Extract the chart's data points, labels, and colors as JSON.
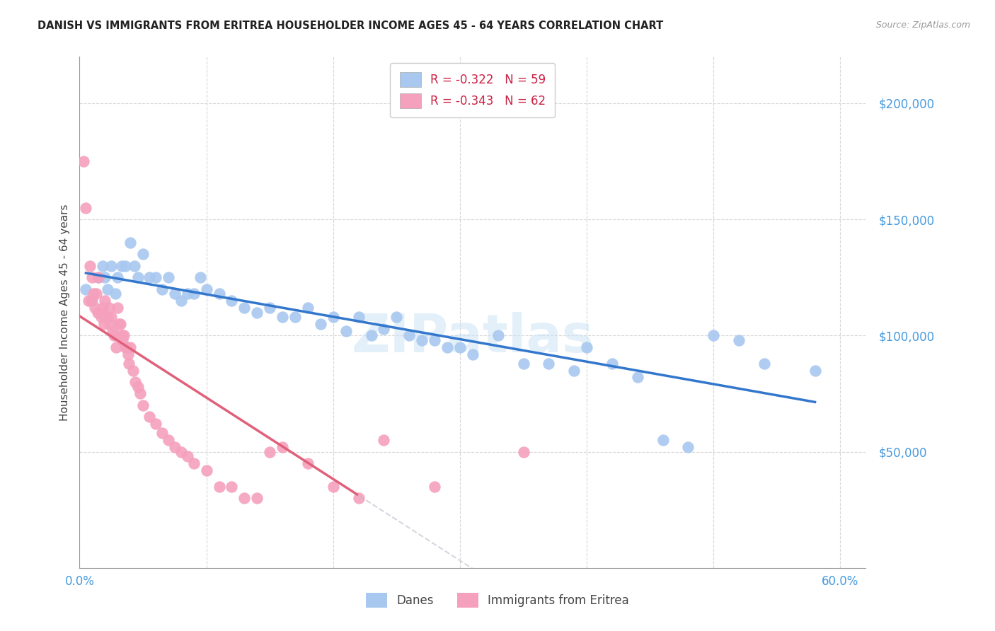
{
  "title": "DANISH VS IMMIGRANTS FROM ERITREA HOUSEHOLDER INCOME AGES 45 - 64 YEARS CORRELATION CHART",
  "source": "Source: ZipAtlas.com",
  "ylabel": "Householder Income Ages 45 - 64 years",
  "ytick_values": [
    50000,
    100000,
    150000,
    200000
  ],
  "ylim": [
    0,
    220000
  ],
  "xlim": [
    0.0,
    0.62
  ],
  "danes_R": "-0.322",
  "danes_N": "59",
  "eritrea_R": "-0.343",
  "eritrea_N": "62",
  "dane_color": "#a8c8f0",
  "eritrea_color": "#f5a0bc",
  "dane_line_color": "#3377cc",
  "eritrea_line_color": "#e0607a",
  "danes_x": [
    0.005,
    0.01,
    0.015,
    0.018,
    0.02,
    0.022,
    0.025,
    0.028,
    0.03,
    0.033,
    0.036,
    0.04,
    0.043,
    0.046,
    0.05,
    0.055,
    0.06,
    0.065,
    0.07,
    0.075,
    0.08,
    0.085,
    0.09,
    0.095,
    0.1,
    0.11,
    0.12,
    0.13,
    0.14,
    0.15,
    0.16,
    0.17,
    0.18,
    0.19,
    0.2,
    0.21,
    0.22,
    0.23,
    0.24,
    0.25,
    0.26,
    0.27,
    0.28,
    0.29,
    0.3,
    0.31,
    0.33,
    0.35,
    0.37,
    0.39,
    0.4,
    0.42,
    0.44,
    0.46,
    0.48,
    0.5,
    0.52,
    0.54,
    0.58
  ],
  "danes_y": [
    120000,
    115000,
    125000,
    130000,
    125000,
    120000,
    130000,
    118000,
    125000,
    130000,
    130000,
    140000,
    130000,
    125000,
    135000,
    125000,
    125000,
    120000,
    125000,
    118000,
    115000,
    118000,
    118000,
    125000,
    120000,
    118000,
    115000,
    112000,
    110000,
    112000,
    108000,
    108000,
    112000,
    105000,
    108000,
    102000,
    108000,
    100000,
    103000,
    108000,
    100000,
    98000,
    98000,
    95000,
    95000,
    92000,
    100000,
    88000,
    88000,
    85000,
    95000,
    88000,
    82000,
    55000,
    52000,
    100000,
    98000,
    88000,
    85000
  ],
  "eritrea_x": [
    0.003,
    0.005,
    0.007,
    0.008,
    0.009,
    0.01,
    0.011,
    0.012,
    0.013,
    0.014,
    0.015,
    0.016,
    0.017,
    0.018,
    0.019,
    0.02,
    0.021,
    0.022,
    0.023,
    0.024,
    0.025,
    0.026,
    0.027,
    0.028,
    0.029,
    0.03,
    0.031,
    0.032,
    0.033,
    0.034,
    0.035,
    0.036,
    0.037,
    0.038,
    0.039,
    0.04,
    0.042,
    0.044,
    0.046,
    0.048,
    0.05,
    0.055,
    0.06,
    0.065,
    0.07,
    0.075,
    0.08,
    0.085,
    0.09,
    0.1,
    0.11,
    0.12,
    0.13,
    0.14,
    0.15,
    0.16,
    0.18,
    0.2,
    0.22,
    0.24,
    0.28,
    0.35
  ],
  "eritrea_y": [
    175000,
    155000,
    115000,
    130000,
    115000,
    125000,
    118000,
    112000,
    118000,
    110000,
    125000,
    110000,
    108000,
    112000,
    105000,
    115000,
    108000,
    108000,
    112000,
    105000,
    108000,
    102000,
    100000,
    100000,
    95000,
    112000,
    105000,
    105000,
    100000,
    98000,
    100000,
    95000,
    95000,
    92000,
    88000,
    95000,
    85000,
    80000,
    78000,
    75000,
    70000,
    65000,
    62000,
    58000,
    55000,
    52000,
    50000,
    48000,
    45000,
    42000,
    35000,
    35000,
    30000,
    30000,
    50000,
    52000,
    45000,
    35000,
    30000,
    55000,
    35000,
    50000
  ]
}
